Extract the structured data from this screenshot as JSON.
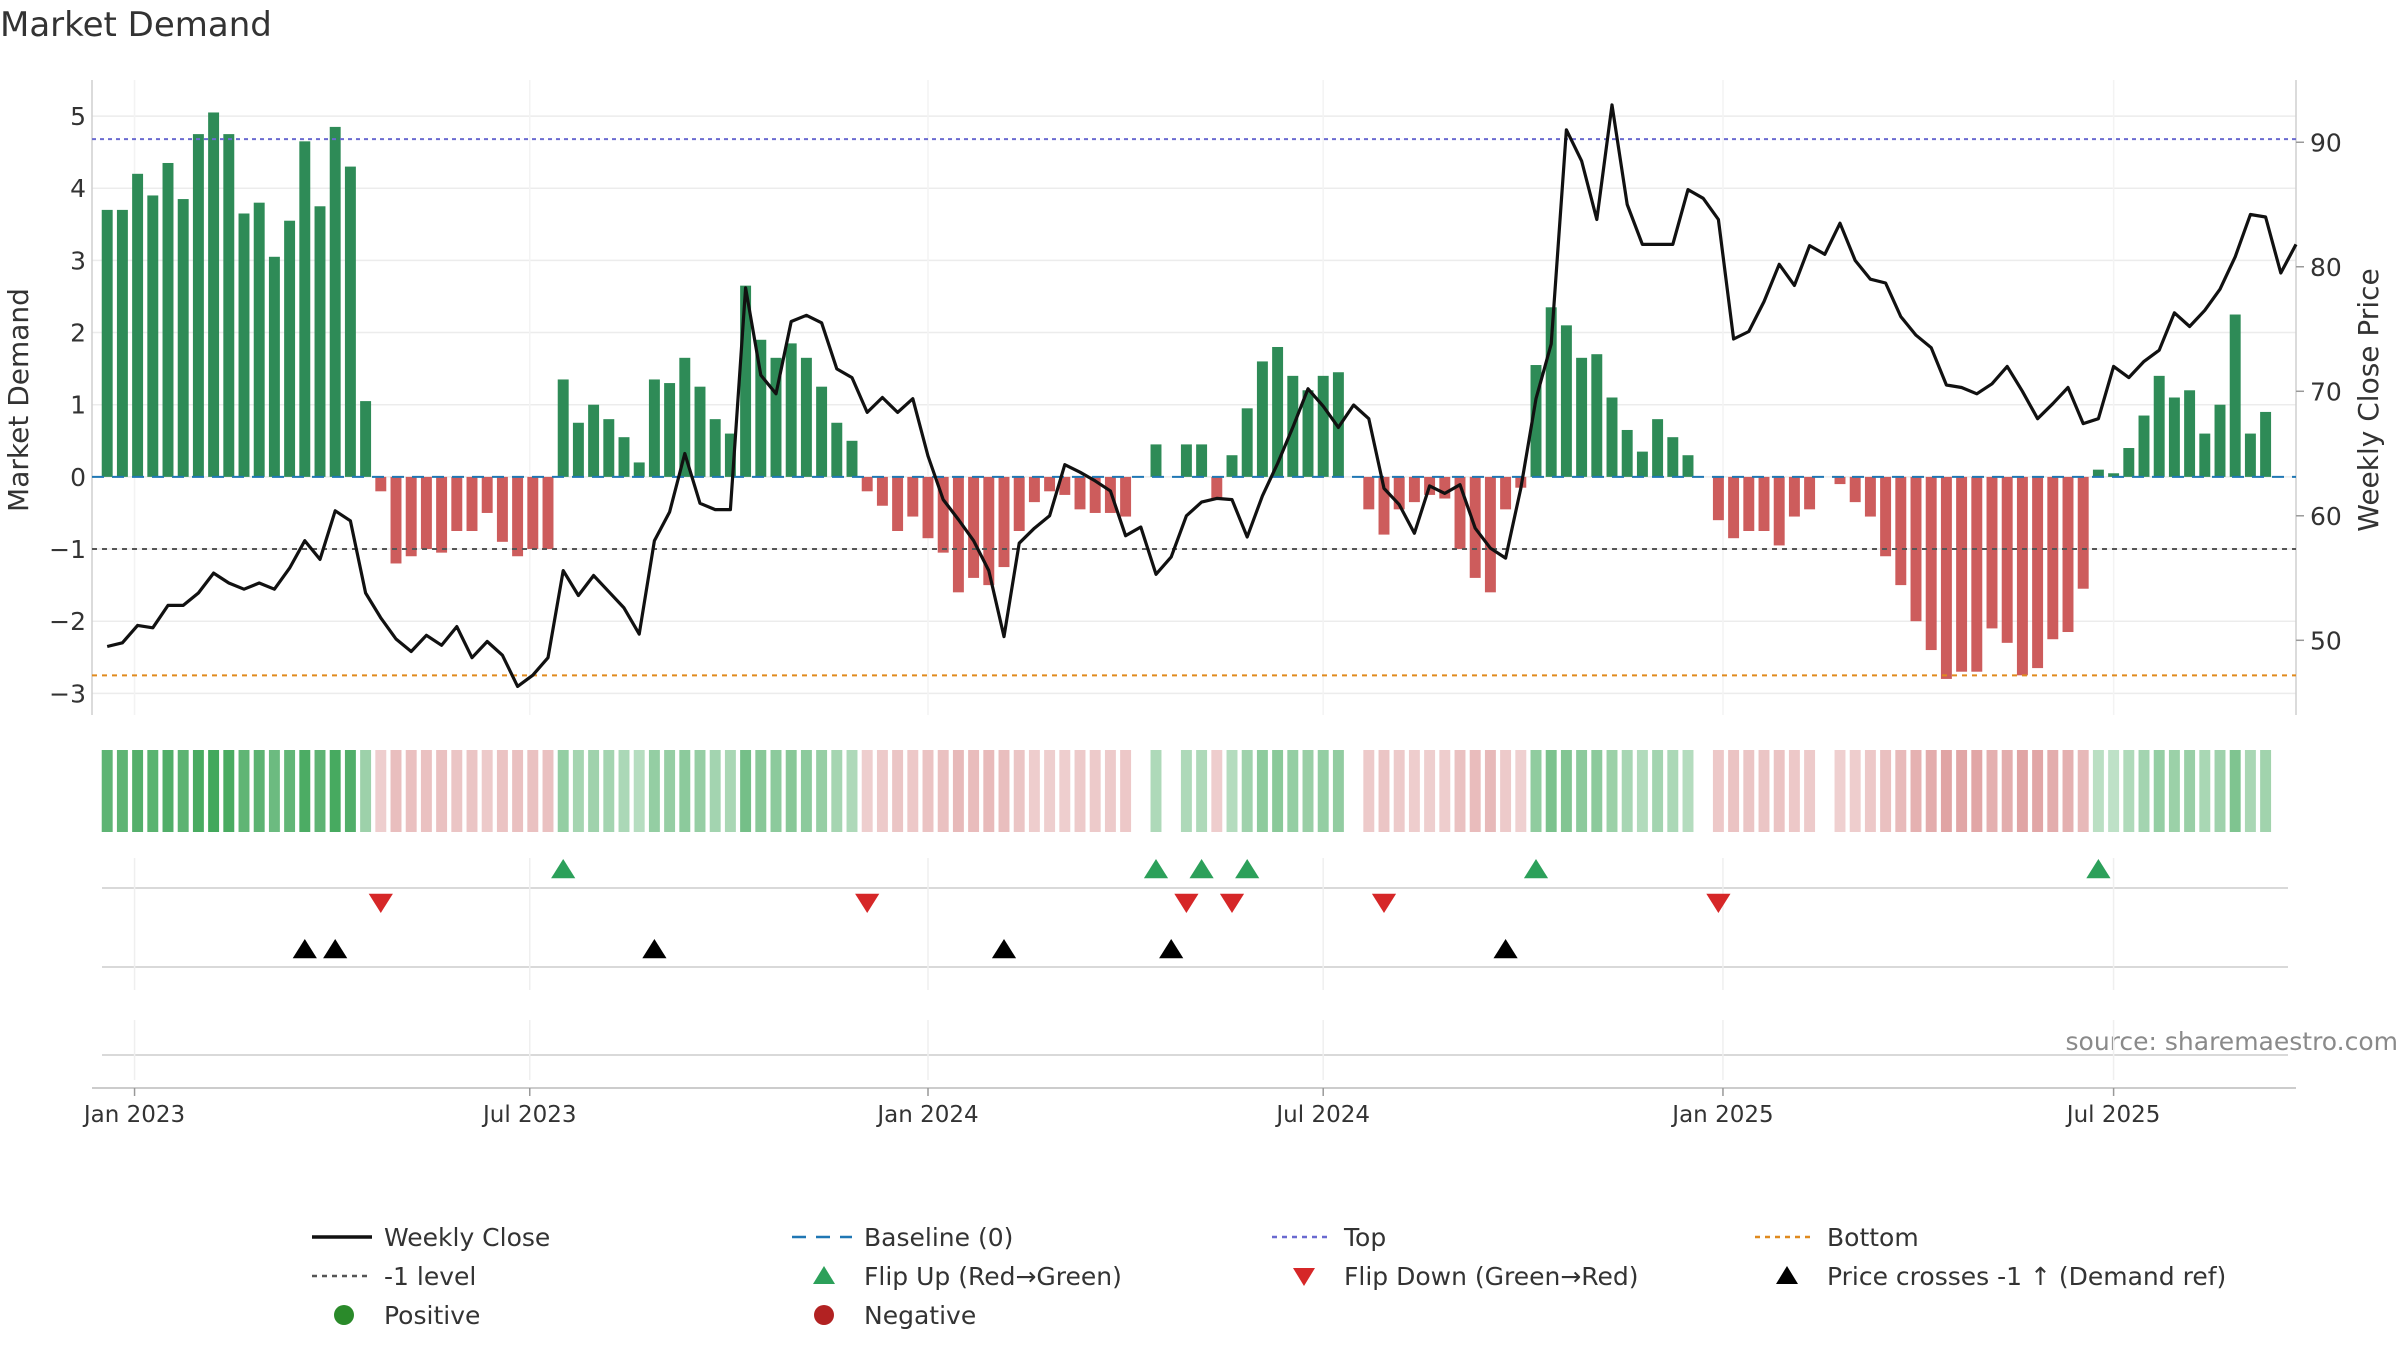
{
  "chart_data": {
    "type": "bar+line",
    "title": "Market Demand",
    "ylabel_left": "Market Demand",
    "ylabel_right": "Weekly Close Price",
    "ylim_left": [
      -3.3,
      5.5
    ],
    "ylim_right": [
      44,
      95
    ],
    "yticks_left": [
      5,
      4,
      3,
      2,
      1,
      0,
      -1,
      -2,
      -3
    ],
    "yticks_left_labels": [
      "5",
      "4",
      "3",
      "2",
      "1",
      "0",
      "−1",
      "−2",
      "−3"
    ],
    "yticks_right": [
      90,
      80,
      70,
      60,
      50
    ],
    "yticks_right_labels": [
      "90",
      "80",
      "70",
      "60",
      "50"
    ],
    "x_range": [
      -1,
      144
    ],
    "x_ticks": [
      {
        "week": 1.8,
        "label": "Jan 2023"
      },
      {
        "week": 27.8,
        "label": "Jul 2023"
      },
      {
        "week": 54,
        "label": "Jan 2024"
      },
      {
        "week": 80,
        "label": "Jul 2024"
      },
      {
        "week": 106.3,
        "label": "Jan 2025"
      },
      {
        "week": 132,
        "label": "Jul 2025"
      }
    ],
    "demand": [
      3.7,
      3.7,
      4.2,
      3.9,
      4.35,
      3.85,
      4.75,
      5.05,
      4.75,
      3.65,
      3.8,
      3.05,
      3.55,
      4.65,
      3.75,
      4.85,
      4.3,
      1.05,
      -0.2,
      -1.2,
      -1.1,
      -1.0,
      -1.05,
      -0.75,
      -0.75,
      -0.5,
      -0.9,
      -1.1,
      -1.0,
      -1.0,
      1.35,
      0.75,
      1.0,
      0.8,
      0.55,
      0.2,
      1.35,
      1.3,
      1.65,
      1.25,
      0.8,
      0.6,
      2.65,
      1.9,
      1.65,
      1.85,
      1.65,
      1.25,
      0.75,
      0.5,
      -0.2,
      -0.4,
      -0.75,
      -0.55,
      -0.85,
      -1.05,
      -1.6,
      -1.4,
      -1.5,
      -1.25,
      -0.75,
      -0.35,
      -0.2,
      -0.25,
      -0.45,
      -0.5,
      -0.5,
      -0.55,
      0,
      0.45,
      0,
      0.45,
      0.45,
      -0.3,
      0.3,
      0.95,
      1.6,
      1.8,
      1.4,
      1.2,
      1.4,
      1.45,
      0,
      -0.45,
      -0.8,
      -0.45,
      -0.35,
      -0.25,
      -0.3,
      -1.0,
      -1.4,
      -1.6,
      -0.45,
      -0.15,
      1.55,
      2.35,
      2.1,
      1.65,
      1.7,
      1.1,
      0.65,
      0.35,
      0.8,
      0.55,
      0.3,
      0,
      -0.6,
      -0.85,
      -0.75,
      -0.75,
      -0.95,
      -0.55,
      -0.45,
      0,
      -0.1,
      -0.35,
      -0.55,
      -1.1,
      -1.5,
      -2.0,
      -2.4,
      -2.8,
      -2.7,
      -2.7,
      -2.1,
      -2.3,
      -2.75,
      -2.65,
      -2.25,
      -2.15,
      -1.55,
      0.1,
      0.05,
      0.4,
      0.85,
      1.4,
      1.1,
      1.2,
      0.6,
      1.0,
      2.25,
      0.6,
      0.9
    ],
    "weekly_close": [
      49.5,
      49.8,
      51.2,
      51.0,
      52.8,
      52.8,
      53.8,
      55.4,
      54.6,
      54.1,
      54.6,
      54.1,
      55.8,
      58.0,
      56.5,
      60.4,
      59.6,
      53.8,
      51.8,
      50.1,
      49.1,
      50.4,
      49.6,
      51.1,
      48.6,
      49.9,
      48.8,
      46.3,
      47.2,
      48.6,
      55.6,
      53.6,
      55.2,
      53.9,
      52.6,
      50.5,
      58.0,
      60.3,
      65.0,
      61.0,
      60.5,
      60.5,
      78.3,
      71.3,
      69.8,
      75.6,
      76.1,
      75.5,
      71.8,
      71.1,
      68.3,
      69.5,
      68.3,
      69.4,
      64.8,
      61.3,
      59.7,
      58.0,
      55.6,
      50.3,
      57.8,
      59.0,
      60.0,
      64.1,
      63.5,
      62.8,
      62.0,
      58.4,
      59.1,
      55.3,
      56.7,
      60.0,
      61.1,
      61.4,
      61.3,
      58.3,
      61.6,
      64.2,
      67.1,
      70.2,
      68.8,
      67.1,
      68.9,
      67.8,
      62.2,
      60.9,
      58.6,
      62.4,
      61.8,
      62.5,
      59.0,
      57.4,
      56.6,
      62.2,
      69.4,
      73.8,
      91.0,
      88.5,
      83.8,
      93.0,
      85.0,
      81.8,
      81.8,
      81.8,
      86.2,
      85.5,
      83.8,
      74.2,
      74.8,
      77.2,
      80.2,
      78.5,
      81.7,
      81.0,
      83.5,
      80.5,
      79.0,
      78.7,
      76.0,
      74.5,
      73.5,
      70.5,
      70.3,
      69.8,
      70.6,
      72.0,
      70.0,
      67.8,
      69.0,
      70.3,
      67.4,
      67.8,
      72.0,
      71.1,
      72.4,
      73.3,
      76.3,
      75.2,
      76.5,
      78.2,
      80.8,
      84.2,
      84.0,
      79.5,
      81.8
    ],
    "top_level": 4.68,
    "bottom_level": -2.75,
    "minus_one_level": -1,
    "baseline": 0,
    "flip_up_weeks": [
      30,
      69,
      72,
      75,
      94,
      131
    ],
    "flip_down_weeks": [
      18,
      50,
      71,
      74,
      84,
      106
    ],
    "price_cross_weeks": [
      13,
      15,
      36,
      59,
      70,
      92
    ],
    "source": "source: sharemaestro.com",
    "legend": [
      {
        "label": "Weekly Close",
        "kind": "line-solid",
        "color": "#111111"
      },
      {
        "label": "Baseline (0)",
        "kind": "line-dash",
        "color": "#1f77b4"
      },
      {
        "label": "Top",
        "kind": "line-dot",
        "color": "#6a6ad0"
      },
      {
        "label": "Bottom",
        "kind": "line-dot",
        "color": "#e08a1e"
      },
      {
        "label": "-1 level",
        "kind": "line-dot",
        "color": "#555555"
      },
      {
        "label": "Flip Up (Red→Green)",
        "kind": "tri-up",
        "color": "#2ca05a"
      },
      {
        "label": "Flip Down (Green→Red)",
        "kind": "tri-down",
        "color": "#d62728"
      },
      {
        "label": "Price crosses -1 ↑ (Demand ref)",
        "kind": "tri-up",
        "color": "#000000"
      },
      {
        "label": "Positive",
        "kind": "circle",
        "color": "#2a8a2a"
      },
      {
        "label": "Negative",
        "kind": "circle",
        "color": "#b22222"
      }
    ],
    "colors": {
      "positive_bar": "#2e8b57",
      "negative_bar": "#cd5c5c",
      "price_line": "#111111",
      "baseline": "#1f77b4",
      "top": "#6a6ad0",
      "bottom": "#e08a1e",
      "minus_one": "#555555",
      "flip_up": "#2ca05a",
      "flip_down": "#d62728",
      "price_cross": "#000000"
    }
  }
}
